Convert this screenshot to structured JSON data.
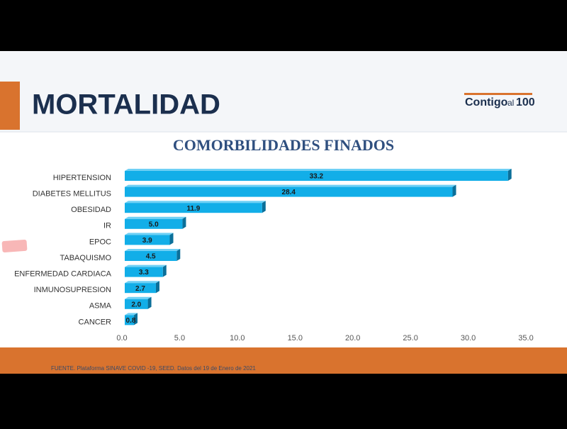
{
  "header": {
    "title": "MORTALIDAD",
    "logo": {
      "text": "Contigo",
      "sub": "al",
      "number": "100"
    }
  },
  "chart_data": {
    "type": "hbar",
    "title": "COMORBILIDADES FINADOS",
    "categories": [
      "HIPERTENSION",
      "DIABETES MELLITUS",
      "OBESIDAD",
      "IR",
      "EPOC",
      "TABAQUISMO",
      "ENFERMEDAD CARDIACA",
      "INMUNOSUPRESION",
      "ASMA",
      "CANCER"
    ],
    "values": [
      33.2,
      28.4,
      11.9,
      5.0,
      3.9,
      4.5,
      3.3,
      2.7,
      2.0,
      0.8
    ],
    "value_labels": [
      "33.2",
      "28.4",
      "11.9",
      "5.0",
      "3.9",
      "4.5",
      "3.3",
      "2.7",
      "2.0",
      "0.8"
    ],
    "color": "#12aee8",
    "xlim": [
      0,
      35
    ],
    "xticks": [
      {
        "value": 0,
        "label": "0.0"
      },
      {
        "value": 5,
        "label": "5.0"
      },
      {
        "value": 10,
        "label": "10.0"
      },
      {
        "value": 15,
        "label": "15.0"
      },
      {
        "value": 20,
        "label": "20.0"
      },
      {
        "value": 25,
        "label": "25.0"
      },
      {
        "value": 30,
        "label": "30.0"
      },
      {
        "value": 35,
        "label": "35.0"
      }
    ],
    "grid": false
  },
  "footer": {
    "source": "FUENTE. Plataforma SINAVE COVID -19, SEED. Datos del 19 de Enero de 2021"
  }
}
